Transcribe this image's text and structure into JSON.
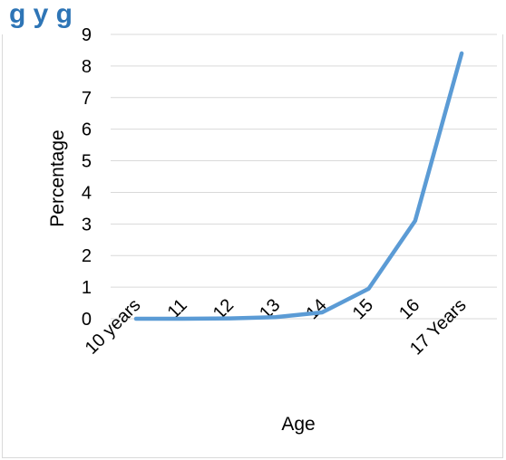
{
  "chart_data": {
    "type": "line",
    "title": "g",
    "title_visible_fragment": "g                                    y g",
    "xlabel": "Age",
    "ylabel": "Percentage",
    "categories": [
      "10 years",
      "11",
      "12",
      "13",
      "14",
      "15",
      "16",
      "17 Years"
    ],
    "series": [
      {
        "values": [
          0.0,
          0.0,
          0.01,
          0.05,
          0.2,
          0.95,
          3.1,
          8.4
        ]
      }
    ],
    "ylim": [
      0,
      9
    ],
    "yticks": [
      "0",
      "1",
      "2",
      "3",
      "4",
      "5",
      "6",
      "7",
      "8",
      "9"
    ],
    "grid": true,
    "line_color": "#5b9bd5",
    "grid_color": "#d9d9d9",
    "title_color": "#2e75b6"
  }
}
